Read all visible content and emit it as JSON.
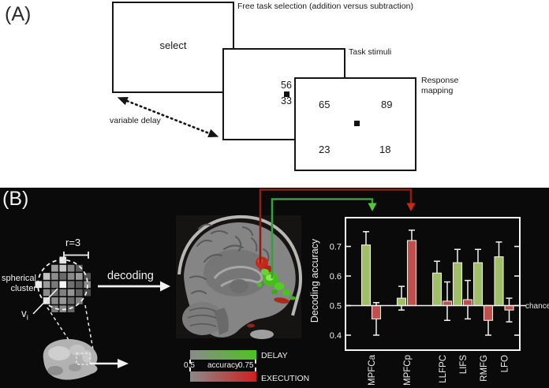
{
  "panel_a": {
    "label": "(A)",
    "selection_screen": {
      "text": "select",
      "caption": "Free task selection (addition versus subtraction)"
    },
    "stimuli_screen": {
      "caption": "Task stimuli",
      "upper_number": "56",
      "lower_number": "33"
    },
    "response_screen": {
      "caption_line1": "Response",
      "caption_line2": "mapping",
      "top_left": "65",
      "top_right": "89",
      "bottom_left": "23",
      "bottom_right": "18"
    },
    "delay_label": "variable delay"
  },
  "panel_b": {
    "label": "(B)",
    "searchlight": {
      "radius_label": "r=3",
      "cluster_label_line1": "spherical",
      "cluster_label_line2": "cluster",
      "voxel_label": "v",
      "voxel_label_sub": "i",
      "decoding_label": "decoding",
      "voxel_grid": [
        [
          null,
          null,
          null,
          "#e4e4e4",
          null,
          null,
          null
        ],
        [
          null,
          null,
          "#9c9c9c",
          "#c6c6c6",
          "#868686",
          "#5c5c5c",
          null
        ],
        [
          null,
          "#c2c2c2",
          "#8e8e8e",
          "#6a6a6a",
          "#8a8a8a",
          "#9c9c9c",
          "#525252"
        ],
        [
          "#eaeaea",
          "#9a9a9a",
          "#7a7a7a",
          "#f4f4f4",
          "#707070",
          "#5c5c5c",
          "#8c8c8c"
        ],
        [
          null,
          "#8c8c8c",
          "#6c6c6c",
          "#808080",
          "#949494",
          "#626262",
          "#4a4a4a"
        ],
        [
          null,
          "#e0e0e0",
          "#8c8c8c",
          "#969696",
          "#6c6c6c",
          "#828282",
          null
        ],
        [
          null,
          null,
          "#7a7a7a",
          "#8a8a8a",
          "#646464",
          null,
          null
        ]
      ]
    },
    "colorbar": {
      "delay_label": "DELAY",
      "execution_label": "EXECUTION",
      "min": "0.5",
      "max": "0.75",
      "axis_label": "accuracy"
    },
    "chart_data": {
      "type": "bar",
      "categories": [
        "MPFCa",
        "MPFCp",
        "LLFPC",
        "LIFS",
        "RMFG",
        "LFO"
      ],
      "series": [
        {
          "name": "DELAY",
          "color": "#a0bd68",
          "values": [
            0.705,
            0.525,
            0.61,
            0.645,
            0.645,
            0.665
          ],
          "errors": [
            0.045,
            0.04,
            0.04,
            0.045,
            0.045,
            0.05
          ]
        },
        {
          "name": "EXECUTION",
          "color": "#c04f4e",
          "values": [
            0.455,
            0.72,
            0.515,
            0.52,
            0.45,
            0.485
          ],
          "errors": [
            0.055,
            0.035,
            0.065,
            0.065,
            0.05,
            0.04
          ]
        }
      ],
      "ylabel": "Decoding accuracy",
      "yticks": [
        0.4,
        0.5,
        0.6,
        0.7
      ],
      "ylim": [
        0.35,
        0.8
      ],
      "baseline": 0.5,
      "baseline_label": "chance",
      "legend_position": "none",
      "grid": false
    }
  },
  "colors": {
    "delay_bar": "#a0bd68",
    "execution_bar": "#c04f4e",
    "delay_bright": "#4cc41f",
    "execution_bright": "#cf1f1f",
    "green_line": "#3a9e3a",
    "green_arrow": "#58c832",
    "red_line": "#8c1f14",
    "red_arrow": "#c8291c"
  }
}
